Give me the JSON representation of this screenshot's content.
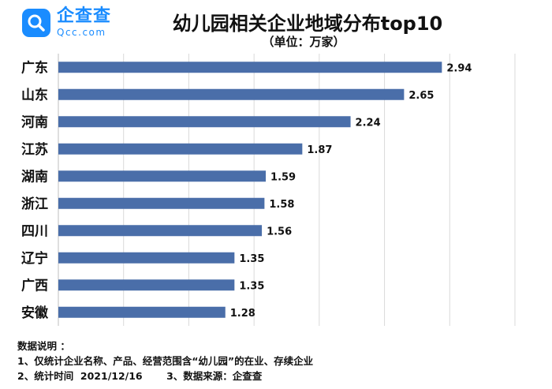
{
  "logo": {
    "cn": "企查查",
    "en": "Qcc.com"
  },
  "chart_data": {
    "type": "bar",
    "orientation": "horizontal",
    "title": "幼儿园相关企业地域分布top10",
    "subtitle": "（单位：万家）",
    "categories": [
      "广东",
      "山东",
      "河南",
      "江苏",
      "湖南",
      "浙江",
      "四川",
      "辽宁",
      "广西",
      "安徽"
    ],
    "values": [
      2.94,
      2.65,
      2.24,
      1.87,
      1.59,
      1.58,
      1.56,
      1.35,
      1.35,
      1.28
    ],
    "value_labels": [
      "2.94",
      "2.65",
      "2.24",
      "1.87",
      "1.59",
      "1.58",
      "1.56",
      "1.35",
      "1.35",
      "1.28"
    ],
    "xlim": [
      0,
      3.5
    ],
    "grid": "vertical-lines",
    "bar_color": "#4a6ea9"
  },
  "notes": {
    "heading": "数据说明 ：",
    "line1": "1、仅统计企业名称、产品、经营范围含“幼儿园”的在业、存续企业",
    "line2": "2、统计时间  2021/12/16       3、数据来源：企查查"
  }
}
